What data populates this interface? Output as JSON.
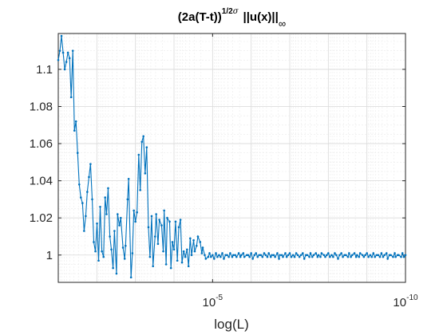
{
  "chart_data": {
    "type": "line",
    "title": {
      "main_part1": "(2a(T-t))",
      "exponent": "1/2",
      "exponent_symbol": "σ",
      "main_part2": "||u(x)||",
      "subscript": "∞"
    },
    "xlabel": "log(L)",
    "ylabel": "",
    "x_axis": {
      "scale": "log",
      "direction": "reversed",
      "range": [
        0.1,
        1e-10
      ],
      "ticks": [
        {
          "value": 1e-05,
          "base": "10",
          "exponent": "-5"
        },
        {
          "value": 1e-10,
          "base": "10",
          "exponent": "-10"
        }
      ]
    },
    "y_axis": {
      "range": [
        0.9853,
        1.1193
      ],
      "ticks": [
        {
          "value": 1.0,
          "label": "1"
        },
        {
          "value": 1.02,
          "label": "1.02"
        },
        {
          "value": 1.04,
          "label": "1.04"
        },
        {
          "value": 1.06,
          "label": "1.06"
        },
        {
          "value": 1.08,
          "label": "1.08"
        },
        {
          "value": 1.1,
          "label": "1.1"
        }
      ]
    },
    "grid": true,
    "minor_grid": true,
    "series": [
      {
        "color": "#0072BD",
        "marker": "dot",
        "points": [
          [
            0.1,
            1.105
          ],
          [
            0.0908,
            1.11
          ],
          [
            0.0825,
            1.118
          ],
          [
            0.0749,
            1.109
          ],
          [
            0.068,
            1.1
          ],
          [
            0.0618,
            1.104
          ],
          [
            0.0561,
            1.109
          ],
          [
            0.0509,
            1.106
          ],
          [
            0.0463,
            1.085
          ],
          [
            0.042,
            1.11
          ],
          [
            0.0381,
            1.067
          ],
          [
            0.0347,
            1.072
          ],
          [
            0.0315,
            1.055
          ],
          [
            0.0286,
            1.038
          ],
          [
            0.026,
            1.031
          ],
          [
            0.0236,
            1.028
          ],
          [
            0.0214,
            1.013
          ],
          [
            0.0194,
            1.021
          ],
          [
            0.0177,
            1.034
          ],
          [
            0.016,
            1.042
          ],
          [
            0.0146,
            1.049
          ],
          [
            0.0132,
            1.03
          ],
          [
            0.012,
            1.007
          ],
          [
            0.0109,
            1.002
          ],
          [
            0.0099,
            1.017
          ],
          [
            0.009,
            0.997
          ],
          [
            0.0082,
            1.026
          ],
          [
            0.0074,
            1.002
          ],
          [
            0.0067,
            0.999
          ],
          [
            0.0061,
            1.031
          ],
          [
            0.0056,
            1.022
          ],
          [
            0.0051,
            1.036
          ],
          [
            0.0046,
            1.01
          ],
          [
            0.0042,
            1.003
          ],
          [
            0.0038,
            0.993
          ],
          [
            0.0035,
            1.013
          ],
          [
            0.0031,
            0.99
          ],
          [
            0.0029,
            1.022
          ],
          [
            0.0026,
            1.016
          ],
          [
            0.0024,
            1.02
          ],
          [
            0.0021,
            1.004
          ],
          [
            0.0019,
            0.998
          ],
          [
            0.0018,
            1.005
          ],
          [
            0.0016,
            1.03
          ],
          [
            0.0015,
            1.041
          ],
          [
            0.0013,
            0.988
          ],
          [
            0.0012,
            1.001
          ],
          [
            0.0011,
            1.024
          ],
          [
            0.001,
            1.018
          ],
          [
            0.00091,
            1.023
          ],
          [
            0.00082,
            1.054
          ],
          [
            0.00075,
            1.035
          ],
          [
            0.00068,
            1.061
          ],
          [
            0.00062,
            1.064
          ],
          [
            0.00056,
            1.044
          ],
          [
            0.00051,
            1.058
          ],
          [
            0.00046,
            1.015
          ],
          [
            0.00042,
            0.999
          ],
          [
            0.00038,
            1.021
          ],
          [
            0.00035,
            0.994
          ],
          [
            0.00031,
            1.01
          ],
          [
            0.00029,
            1.022
          ],
          [
            0.00026,
            1.006
          ],
          [
            0.00024,
            1.019
          ],
          [
            0.00021,
            1.016
          ],
          [
            0.00019,
            1.002
          ],
          [
            0.00018,
            1.024
          ],
          [
            0.00016,
            0.995
          ],
          [
            0.00015,
            1.02
          ],
          [
            0.00013,
            1.018
          ],
          [
            0.00012,
            0.993
          ],
          [
            0.00011,
            1.007
          ],
          [
            0.0001,
            1.003
          ],
          [
            9.1e-05,
            1.018
          ],
          [
            8.2e-05,
            0.997
          ],
          [
            7.5e-05,
            1.015
          ],
          [
            6.8e-05,
            1.019
          ],
          [
            6.2e-05,
            0.996
          ],
          [
            5.6e-05,
            1.002
          ],
          [
            5.1e-05,
            0.999
          ],
          [
            4.6e-05,
            1.003
          ],
          [
            4.2e-05,
            0.994
          ],
          [
            3.8e-05,
            1.009
          ],
          [
            3.5e-05,
            1.0
          ],
          [
            3.1e-05,
            1.008
          ],
          [
            2.9e-05,
            1.002
          ],
          [
            2.6e-05,
            1.005
          ],
          [
            2.4e-05,
            1.01
          ],
          [
            2.1e-05,
            1.007
          ],
          [
            1.9e-05,
            1.001
          ],
          [
            1.8e-05,
            1.004
          ],
          [
            1.6e-05,
            1.0
          ],
          [
            1.5e-05,
            0.998
          ],
          [
            1.3e-05,
            0.999
          ],
          [
            1.2e-05,
            1.001
          ],
          [
            1.1e-05,
            0.999
          ],
          [
            1e-05,
            1.0
          ],
          [
            9.1e-06,
            0.998
          ],
          [
            8.2e-06,
            1.001
          ],
          [
            7.5e-06,
            0.999
          ],
          [
            6.8e-06,
            1.0
          ],
          [
            6.2e-06,
            0.999
          ],
          [
            5.6e-06,
            1.001
          ],
          [
            5.1e-06,
            0.998
          ],
          [
            4.6e-06,
            1.0
          ],
          [
            4.2e-06,
            1.0
          ],
          [
            3.8e-06,
            0.999
          ],
          [
            3.5e-06,
            1.001
          ],
          [
            3.1e-06,
            0.999
          ],
          [
            2.9e-06,
            1.0
          ],
          [
            2.6e-06,
            1.0
          ],
          [
            2.4e-06,
            0.999
          ],
          [
            2.1e-06,
            1.001
          ],
          [
            1.9e-06,
            0.999
          ],
          [
            1.8e-06,
            1.0
          ],
          [
            1.6e-06,
            1.001
          ],
          [
            1.5e-06,
            0.999
          ],
          [
            1.3e-06,
            1.0
          ],
          [
            1.2e-06,
            1.0
          ],
          [
            1.1e-06,
            0.999
          ],
          [
            1e-06,
            1.001
          ],
          [
            9.1e-07,
            0.998
          ],
          [
            8.2e-07,
            1.0
          ],
          [
            7.5e-07,
            1.001
          ],
          [
            6.8e-07,
            0.999
          ],
          [
            6.2e-07,
            1.0
          ],
          [
            5.6e-07,
            1.0
          ],
          [
            5.1e-07,
            0.999
          ],
          [
            4.6e-07,
            1.001
          ],
          [
            4.2e-07,
            1.0
          ],
          [
            3.8e-07,
            0.999
          ],
          [
            3.5e-07,
            1.001
          ],
          [
            3.1e-07,
            0.999
          ],
          [
            2.9e-07,
            1.0
          ],
          [
            2.6e-07,
            1.0
          ],
          [
            2.4e-07,
            0.999
          ],
          [
            2.1e-07,
            1.001
          ],
          [
            1.9e-07,
            0.998
          ],
          [
            1.8e-07,
            1.0
          ],
          [
            1.6e-07,
            1.0
          ],
          [
            1.5e-07,
            0.999
          ],
          [
            1.3e-07,
            1.001
          ],
          [
            1.2e-07,
            0.999
          ],
          [
            1.1e-07,
            1.0
          ],
          [
            1e-07,
            1.001
          ],
          [
            9.1e-08,
            0.999
          ],
          [
            8.2e-08,
            1.0
          ],
          [
            7.5e-08,
            0.999
          ],
          [
            6.8e-08,
            1.001
          ],
          [
            6.2e-08,
            1.0
          ],
          [
            5.6e-08,
            0.999
          ],
          [
            5.1e-08,
            1.0
          ],
          [
            4.6e-08,
            1.001
          ],
          [
            4.2e-08,
            0.998
          ],
          [
            3.8e-08,
            1.0
          ],
          [
            3.5e-08,
            1.0
          ],
          [
            3.1e-08,
            0.999
          ],
          [
            2.9e-08,
            1.001
          ],
          [
            2.6e-08,
            0.999
          ],
          [
            2.4e-08,
            1.0
          ],
          [
            2.1e-08,
            1.001
          ],
          [
            1.9e-08,
            0.999
          ],
          [
            1.8e-08,
            1.0
          ],
          [
            1.6e-08,
            0.999
          ],
          [
            1.5e-08,
            1.001
          ],
          [
            1.3e-08,
            1.0
          ],
          [
            1.2e-08,
            0.999
          ],
          [
            1.1e-08,
            1.0
          ],
          [
            1e-08,
            1.001
          ],
          [
            9.1e-09,
            0.999
          ],
          [
            8.2e-09,
            1.0
          ],
          [
            7.5e-09,
            0.999
          ],
          [
            6.8e-09,
            1.001
          ],
          [
            6.2e-09,
            1.0
          ],
          [
            5.6e-09,
            0.998
          ],
          [
            5.1e-09,
            1.0
          ],
          [
            4.6e-09,
            1.001
          ],
          [
            4.2e-09,
            0.999
          ],
          [
            3.8e-09,
            1.0
          ],
          [
            3.5e-09,
            1.0
          ],
          [
            3.1e-09,
            0.999
          ],
          [
            2.9e-09,
            1.001
          ],
          [
            2.6e-09,
            0.999
          ],
          [
            2.4e-09,
            1.0
          ],
          [
            2.1e-09,
            1.001
          ],
          [
            1.9e-09,
            0.999
          ],
          [
            1.8e-09,
            1.0
          ],
          [
            1.6e-09,
            0.999
          ],
          [
            1.5e-09,
            1.001
          ],
          [
            1.3e-09,
            1.0
          ],
          [
            1.2e-09,
            0.999
          ],
          [
            1.1e-09,
            1.0
          ],
          [
            1e-09,
            1.001
          ],
          [
            9.1e-10,
            0.999
          ],
          [
            8.2e-10,
            1.0
          ],
          [
            7.5e-10,
            0.999
          ],
          [
            6.8e-10,
            1.001
          ],
          [
            6.2e-10,
            0.999
          ],
          [
            5.6e-10,
            1.0
          ],
          [
            5.1e-10,
            1.0
          ],
          [
            4.6e-10,
            0.999
          ],
          [
            4.2e-10,
            1.001
          ],
          [
            3.8e-10,
            0.999
          ],
          [
            3.5e-10,
            1.0
          ],
          [
            3.1e-10,
            1.001
          ],
          [
            2.9e-10,
            0.998
          ],
          [
            2.6e-10,
            1.0
          ],
          [
            2.4e-10,
            1.0
          ],
          [
            2.1e-10,
            0.999
          ],
          [
            1.9e-10,
            1.001
          ],
          [
            1.8e-10,
            0.999
          ],
          [
            1.6e-10,
            1.0
          ],
          [
            1.5e-10,
            1.0
          ],
          [
            1.3e-10,
            0.999
          ],
          [
            1.2e-10,
            1.001
          ],
          [
            1.1e-10,
            0.999
          ],
          [
            1e-10,
            1.0
          ]
        ]
      }
    ]
  }
}
